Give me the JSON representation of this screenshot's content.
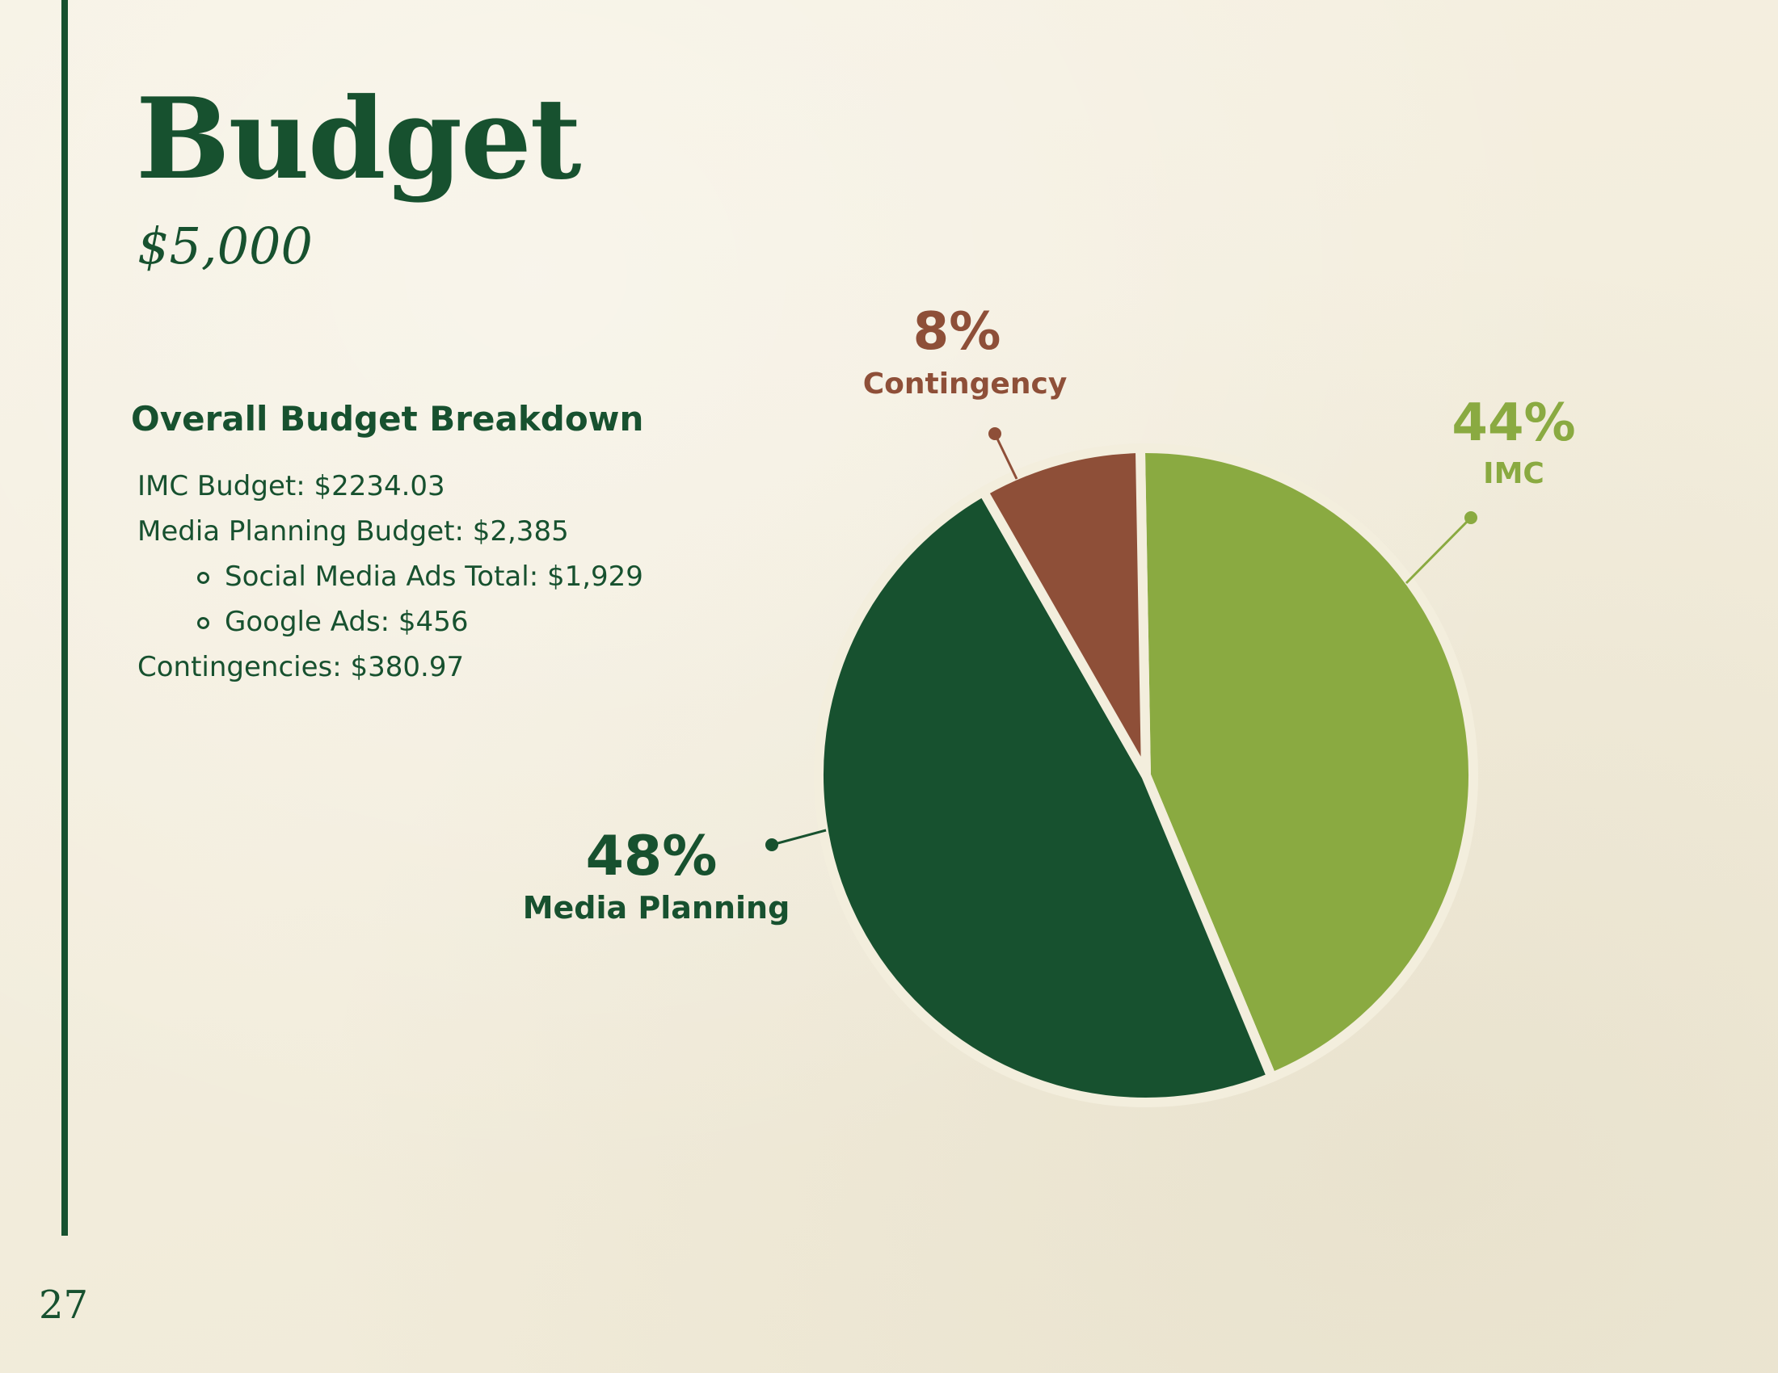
{
  "page_number": "27",
  "title": "Budget",
  "total": "$5,000",
  "breakdown": {
    "heading": "Overall Budget Breakdown",
    "items": [
      {
        "text": "IMC Budget: $2234.03",
        "level": 0
      },
      {
        "text": "Media Planning Budget: $2,385",
        "level": 0
      },
      {
        "text": "Social Media Ads Total: $1,929",
        "level": 1
      },
      {
        "text": "Google Ads: $456",
        "level": 1
      },
      {
        "text": "Contingencies: $380.97",
        "level": 0
      }
    ]
  },
  "chart_data": {
    "type": "pie",
    "slices": [
      {
        "label": "IMC",
        "percent_label": "44%",
        "value": 44,
        "color": "#8aaa41"
      },
      {
        "label": "Media Planning",
        "percent_label": "48%",
        "value": 48,
        "color": "#17512f"
      },
      {
        "label": "Contingency",
        "percent_label": "8%",
        "value": 8,
        "color": "#8e4f38"
      }
    ],
    "background_color": "#f3eedd"
  }
}
